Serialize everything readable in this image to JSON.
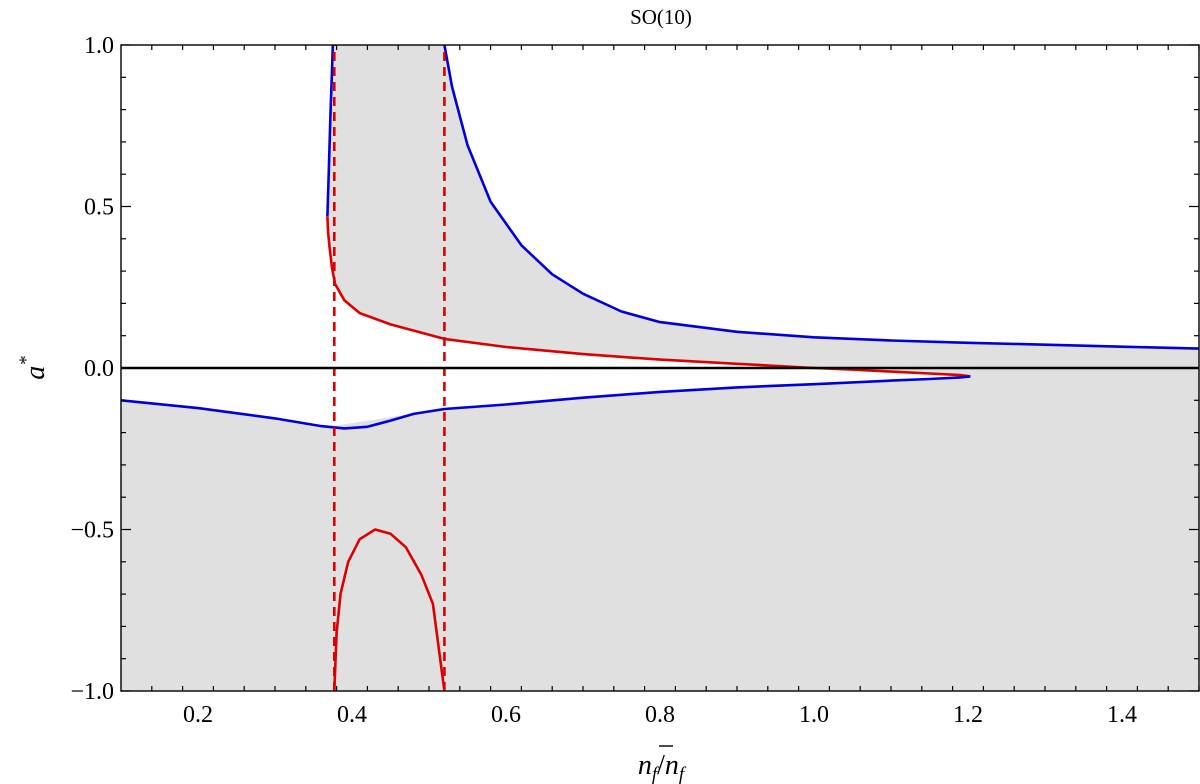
{
  "chart_data": {
    "type": "line",
    "title": "SO(10)",
    "xlabel": "n_f/n̄_f",
    "ylabel": "a*",
    "xlim": [
      0.1,
      1.5
    ],
    "ylim": [
      -1.0,
      1.0
    ],
    "xticks": [
      0.2,
      0.4,
      0.6,
      0.8,
      1.0,
      1.2,
      1.4
    ],
    "xtick_labels": [
      "0.2",
      "0.4",
      "0.6",
      "0.8",
      "1.0",
      "1.2",
      "1.4"
    ],
    "yticks": [
      -1.0,
      -0.5,
      0.0,
      0.5,
      1.0
    ],
    "ytick_labels": [
      "−1.0",
      "−0.5",
      "0.0",
      "0.5",
      "1.0"
    ],
    "grid": false,
    "colors": {
      "blue": "#0000dd",
      "red": "#dd0000",
      "fill": "#e0e0e0"
    },
    "series": [
      {
        "color": "#0000dd",
        "points": [
          [
            0.368,
            0.47
          ],
          [
            0.37,
            0.62
          ],
          [
            0.372,
            0.78
          ],
          [
            0.374,
            0.92
          ],
          [
            0.375,
            1.0
          ]
        ]
      },
      {
        "color": "#dd0000",
        "points": [
          [
            0.368,
            0.47
          ],
          [
            0.369,
            0.42
          ],
          [
            0.371,
            0.37
          ],
          [
            0.374,
            0.31
          ],
          [
            0.378,
            0.26
          ],
          [
            0.39,
            0.21
          ],
          [
            0.41,
            0.17
          ],
          [
            0.45,
            0.135
          ],
          [
            0.52,
            0.09
          ],
          [
            0.6,
            0.065
          ],
          [
            0.7,
            0.043
          ],
          [
            0.8,
            0.026
          ],
          [
            0.9,
            0.013
          ],
          [
            1.0,
            0.0
          ],
          [
            1.05,
            -0.005
          ],
          [
            1.1,
            -0.011
          ],
          [
            1.15,
            -0.017
          ],
          [
            1.19,
            -0.022
          ],
          [
            1.203,
            -0.026
          ]
        ]
      },
      {
        "color": "#0000dd",
        "points": [
          [
            1.203,
            -0.026
          ],
          [
            1.19,
            -0.029
          ],
          [
            1.15,
            -0.034
          ],
          [
            1.1,
            -0.039
          ],
          [
            1.0,
            -0.05
          ],
          [
            0.9,
            -0.06
          ],
          [
            0.8,
            -0.074
          ],
          [
            0.7,
            -0.092
          ],
          [
            0.6,
            -0.113
          ],
          [
            0.52,
            -0.127
          ],
          [
            0.48,
            -0.142
          ],
          [
            0.45,
            -0.163
          ],
          [
            0.42,
            -0.182
          ],
          [
            0.39,
            -0.187
          ],
          [
            0.36,
            -0.18
          ],
          [
            0.3,
            -0.156
          ],
          [
            0.2,
            -0.124
          ],
          [
            0.1,
            -0.1
          ]
        ]
      },
      {
        "color": "#0000dd",
        "points": [
          [
            0.52,
            1.0
          ],
          [
            0.53,
            0.87
          ],
          [
            0.55,
            0.69
          ],
          [
            0.58,
            0.515
          ],
          [
            0.62,
            0.38
          ],
          [
            0.66,
            0.29
          ],
          [
            0.7,
            0.23
          ],
          [
            0.75,
            0.175
          ],
          [
            0.8,
            0.142
          ],
          [
            0.9,
            0.112
          ],
          [
            1.0,
            0.095
          ],
          [
            1.1,
            0.085
          ],
          [
            1.2,
            0.078
          ],
          [
            1.3,
            0.072
          ],
          [
            1.4,
            0.066
          ],
          [
            1.5,
            0.06
          ]
        ]
      },
      {
        "color": "#dd0000",
        "points": [
          [
            0.377,
            -1.0
          ],
          [
            0.38,
            -0.82
          ],
          [
            0.385,
            -0.7
          ],
          [
            0.395,
            -0.6
          ],
          [
            0.41,
            -0.53
          ],
          [
            0.43,
            -0.5
          ],
          [
            0.45,
            -0.513
          ],
          [
            0.47,
            -0.555
          ],
          [
            0.49,
            -0.64
          ],
          [
            0.505,
            -0.73
          ],
          [
            0.52,
            -1.0
          ]
        ]
      },
      {
        "color": "#dd0000",
        "dashed": true,
        "points": [
          [
            0.377,
            -1.0
          ],
          [
            0.377,
            1.0
          ]
        ]
      },
      {
        "color": "#dd0000",
        "dashed": true,
        "points": [
          [
            0.52,
            -1.0
          ],
          [
            0.52,
            1.0
          ]
        ]
      },
      {
        "color": "#000000",
        "points": [
          [
            0.1,
            0.0
          ],
          [
            1.5,
            0.0
          ]
        ]
      }
    ],
    "shaded_regions": [
      {
        "color": "#e0e0e0",
        "points": [
          [
            0.1,
            -1.0
          ],
          [
            1.5,
            -1.0
          ],
          [
            1.5,
            0.0
          ],
          [
            1.203,
            -0.026
          ],
          [
            1.19,
            -0.029
          ],
          [
            1.15,
            -0.034
          ],
          [
            1.1,
            -0.039
          ],
          [
            1.0,
            -0.05
          ],
          [
            0.9,
            -0.06
          ],
          [
            0.8,
            -0.074
          ],
          [
            0.7,
            -0.092
          ],
          [
            0.6,
            -0.113
          ],
          [
            0.52,
            -0.127
          ],
          [
            0.48,
            -0.142
          ],
          [
            0.45,
            -0.163
          ],
          [
            0.42,
            -0.182
          ],
          [
            0.39,
            -0.187
          ],
          [
            0.36,
            -0.18
          ],
          [
            0.3,
            -0.156
          ],
          [
            0.2,
            -0.124
          ],
          [
            0.1,
            -0.1
          ]
        ]
      },
      {
        "color": "#e0e0e0",
        "points": [
          [
            0.375,
            1.0
          ],
          [
            0.52,
            1.0
          ],
          [
            0.53,
            0.87
          ],
          [
            0.55,
            0.69
          ],
          [
            0.58,
            0.515
          ],
          [
            0.62,
            0.38
          ],
          [
            0.66,
            0.29
          ],
          [
            0.7,
            0.23
          ],
          [
            0.75,
            0.175
          ],
          [
            0.8,
            0.142
          ],
          [
            0.9,
            0.112
          ],
          [
            1.0,
            0.095
          ],
          [
            1.1,
            0.085
          ],
          [
            1.2,
            0.078
          ],
          [
            1.3,
            0.072
          ],
          [
            1.4,
            0.066
          ],
          [
            1.5,
            0.06
          ],
          [
            1.5,
            0.0
          ],
          [
            1.203,
            -0.026
          ],
          [
            1.19,
            -0.022
          ],
          [
            1.15,
            -0.017
          ],
          [
            1.1,
            -0.011
          ],
          [
            1.05,
            -0.005
          ],
          [
            1.0,
            0.0
          ],
          [
            0.9,
            0.013
          ],
          [
            0.8,
            0.026
          ],
          [
            0.7,
            0.043
          ],
          [
            0.6,
            0.065
          ],
          [
            0.52,
            0.09
          ],
          [
            0.45,
            0.135
          ],
          [
            0.41,
            0.17
          ],
          [
            0.39,
            0.21
          ],
          [
            0.378,
            0.26
          ],
          [
            0.374,
            0.31
          ],
          [
            0.371,
            0.37
          ],
          [
            0.369,
            0.42
          ],
          [
            0.368,
            0.47
          ],
          [
            0.37,
            0.62
          ],
          [
            0.372,
            0.78
          ],
          [
            0.374,
            0.92
          ]
        ]
      },
      {
        "color": "#e0e0e0",
        "points": [
          [
            0.377,
            -0.18
          ],
          [
            0.52,
            -0.127
          ],
          [
            0.52,
            -1.0
          ],
          [
            0.505,
            -0.73
          ],
          [
            0.49,
            -0.64
          ],
          [
            0.47,
            -0.555
          ],
          [
            0.45,
            -0.513
          ],
          [
            0.43,
            -0.5
          ],
          [
            0.41,
            -0.53
          ],
          [
            0.395,
            -0.6
          ],
          [
            0.385,
            -0.7
          ],
          [
            0.38,
            -0.82
          ],
          [
            0.377,
            -1.0
          ]
        ]
      }
    ]
  }
}
